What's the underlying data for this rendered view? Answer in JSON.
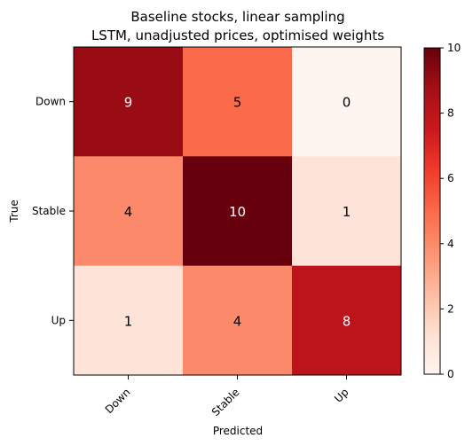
{
  "chart_data": {
    "type": "heatmap",
    "title_lines": [
      "Baseline stocks, linear sampling",
      "LSTM, unadjusted prices, optimised weights"
    ],
    "xlabel": "Predicted",
    "ylabel": "True",
    "x_categories": [
      "Down",
      "Stable",
      "Up"
    ],
    "y_categories": [
      "Down",
      "Stable",
      "Up"
    ],
    "values": [
      [
        9,
        5,
        0
      ],
      [
        4,
        10,
        1
      ],
      [
        1,
        4,
        8
      ]
    ],
    "colorbar": {
      "min": 0,
      "max": 10,
      "ticks": [
        "0",
        "2",
        "4",
        "6",
        "8",
        "10"
      ]
    },
    "colormap": "Reds",
    "colors": {
      "low": "#fff5f0",
      "high": "#67000d"
    }
  }
}
